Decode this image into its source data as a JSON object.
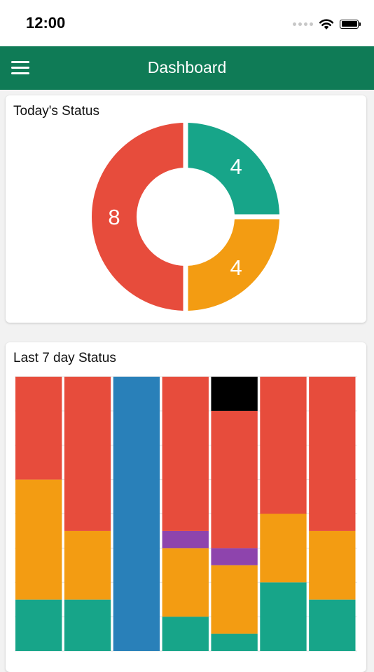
{
  "status_bar": {
    "time": "12:00"
  },
  "header": {
    "title": "Dashboard"
  },
  "today_card": {
    "title": "Today's Status"
  },
  "week_card": {
    "title": "Last 7 day Status"
  },
  "colors": {
    "header": "#0f7b56",
    "green": "#17a589",
    "orange": "#f39c12",
    "red": "#e74c3c",
    "blue": "#2980b9",
    "purple": "#8e44ad",
    "black": "#000000"
  },
  "chart_data": [
    {
      "type": "pie",
      "variant": "donut",
      "title": "Today's Status",
      "slices": [
        {
          "value": 4,
          "label": "4",
          "color": "#17a589"
        },
        {
          "value": 4,
          "label": "4",
          "color": "#f39c12"
        },
        {
          "value": 8,
          "label": "8",
          "color": "#e74c3c"
        }
      ]
    },
    {
      "type": "bar",
      "stacked": true,
      "normalized": true,
      "title": "Last 7 day Status",
      "ylim": [
        0,
        100
      ],
      "grid": true,
      "categories": [
        "",
        "",
        "",
        "",
        "",
        "",
        ""
      ],
      "series": [
        {
          "color": "#17a589",
          "values": [
            18.75,
            18.75,
            0,
            12.5,
            6.25,
            25,
            18.75
          ]
        },
        {
          "color": "#f39c12",
          "values": [
            43.75,
            25,
            0,
            25,
            25,
            25,
            25
          ]
        },
        {
          "color": "#8e44ad",
          "values": [
            0,
            0,
            0,
            6.25,
            6.25,
            0,
            0
          ]
        },
        {
          "color": "#2980b9",
          "values": [
            0,
            0,
            100,
            0,
            0,
            0,
            0
          ]
        },
        {
          "color": "#e74c3c",
          "values": [
            37.5,
            56.25,
            0,
            56.25,
            50,
            50,
            56.25
          ]
        },
        {
          "color": "#000000",
          "values": [
            0,
            0,
            0,
            0,
            12.5,
            0,
            0
          ]
        }
      ]
    }
  ]
}
